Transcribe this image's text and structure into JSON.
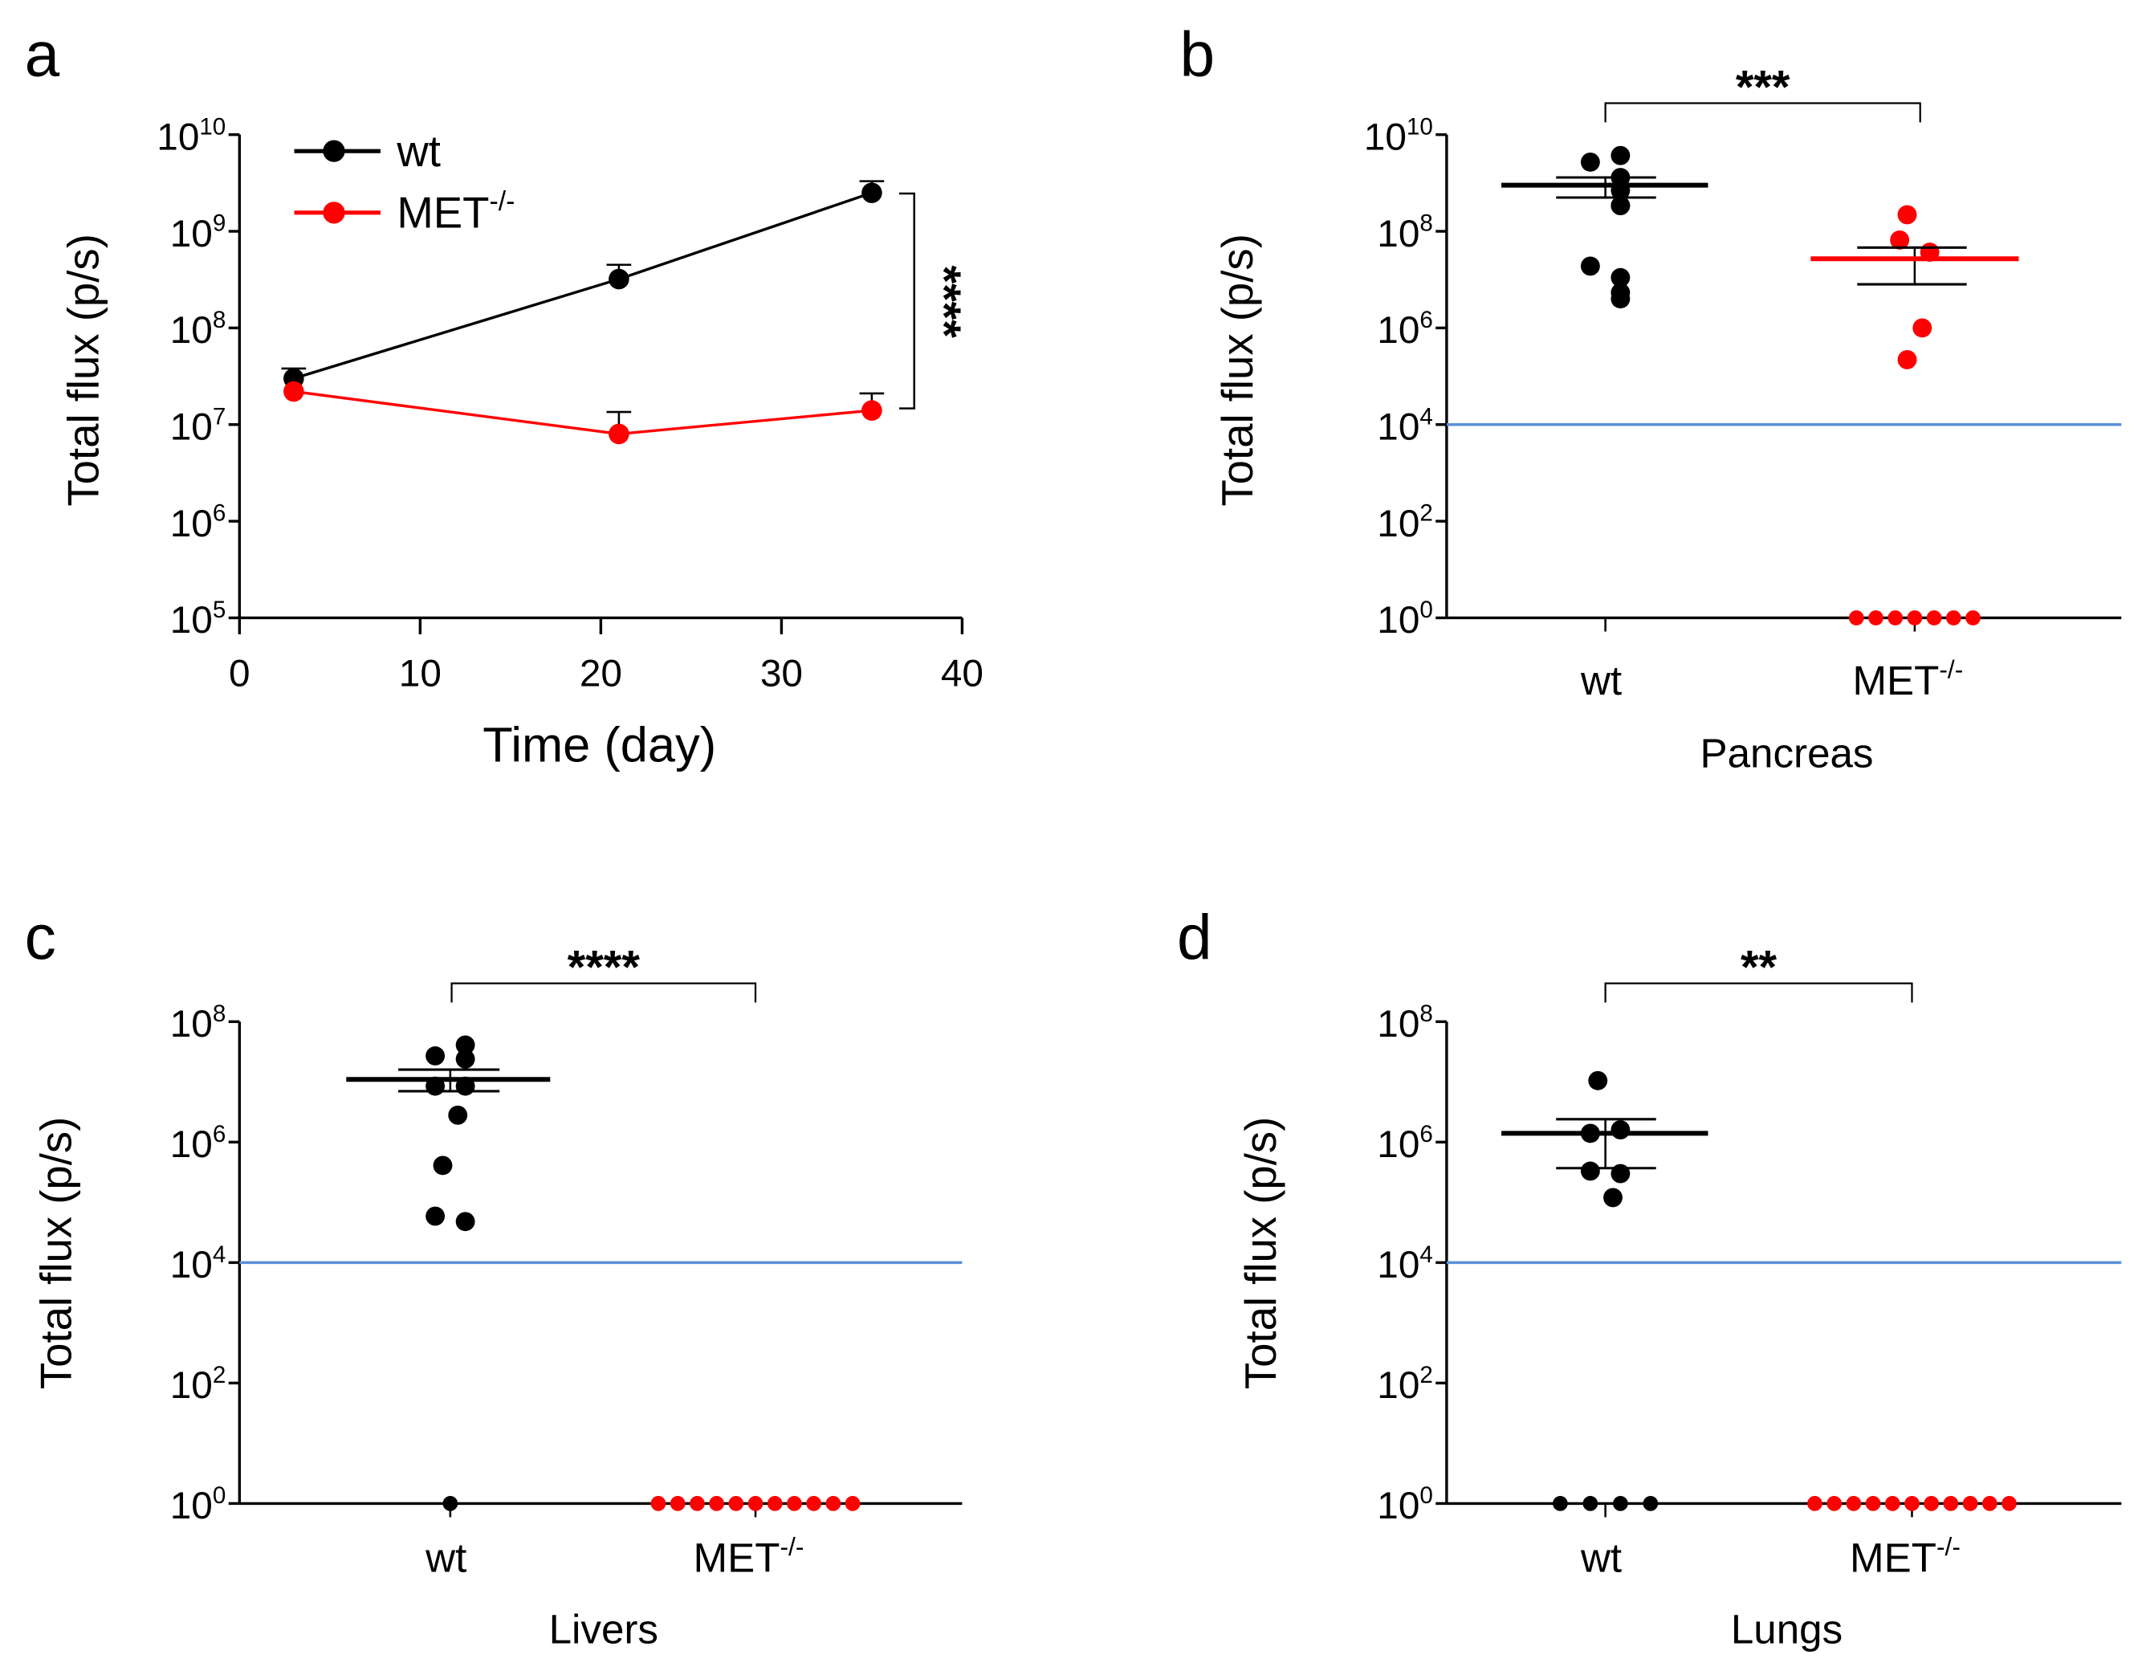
{
  "colors": {
    "wt": "#000000",
    "met": "#ff0000",
    "threshold": "#5b8fd6",
    "axis": "#000000"
  },
  "chart_data": [
    {
      "panel": "a",
      "type": "line",
      "xlabel": "Time (day)",
      "ylabel": "Total flux (p/s)",
      "xlim": [
        0,
        40
      ],
      "xticks": [
        "0",
        "10",
        "20",
        "30",
        "40"
      ],
      "xtick_values": [
        0,
        10,
        20,
        30,
        40
      ],
      "ylim": [
        100000,
        10000000000
      ],
      "yscale": "log",
      "ytick_base": "10",
      "ytick_exponents": [
        "5",
        "6",
        "7",
        "8",
        "9",
        "10"
      ],
      "legend": {
        "placement": "top-left",
        "entries": [
          {
            "label": "wt",
            "sup": ""
          },
          {
            "label": "MET",
            "sup": "-/-"
          }
        ]
      },
      "series": [
        {
          "name": "wt",
          "x": [
            3,
            21,
            35
          ],
          "y": [
            30000000,
            320000000,
            2500000000
          ],
          "err_upper": [
            38000000,
            450000000,
            3300000000
          ]
        },
        {
          "name": "MET-/-",
          "x": [
            3,
            21,
            35
          ],
          "y": [
            22000000,
            8000000,
            14000000
          ],
          "err_upper": [
            22000000,
            13500000,
            21000000
          ]
        }
      ],
      "significance": "****"
    },
    {
      "panel": "b",
      "type": "scatter",
      "title": "",
      "xlabel": "Pancreas",
      "ylabel": "Total flux (p/s)",
      "ylim": [
        1,
        10000000000
      ],
      "yscale": "log",
      "ytick_base": "10",
      "ytick_exponents": [
        "0",
        "2",
        "4",
        "6",
        "8",
        "10"
      ],
      "categories": [
        {
          "label": "wt",
          "sup": ""
        },
        {
          "label": "MET",
          "sup": "-/-"
        }
      ],
      "threshold": 10000,
      "series": [
        {
          "name": "wt",
          "values": [
            2700000000,
            3700000000,
            1300000000,
            700000000,
            340000000,
            340000000,
            19000000,
            11000000,
            5400000,
            4000000
          ],
          "mean": 900000000,
          "sem": [
            500000000,
            1300000000
          ]
        },
        {
          "name": "MET-/-",
          "values": [
            220000000,
            66000000,
            37000000,
            1000000,
            220000,
            1,
            1,
            1,
            1,
            1,
            1,
            1
          ],
          "mean": 27000000,
          "sem": [
            8000000,
            46000000
          ]
        }
      ],
      "significance": "***"
    },
    {
      "panel": "c",
      "type": "scatter",
      "xlabel": "Livers",
      "ylabel": "Total flux (p/s)",
      "ylim": [
        1,
        100000000
      ],
      "yscale": "log",
      "ytick_base": "10",
      "ytick_exponents": [
        "0",
        "2",
        "4",
        "6",
        "8"
      ],
      "categories": [
        {
          "label": "wt",
          "sup": ""
        },
        {
          "label": "MET",
          "sup": "-/-"
        }
      ],
      "threshold": 10000,
      "series": [
        {
          "name": "wt",
          "values": [
            27000000,
            41000000,
            24000000,
            8500000,
            8500000,
            2800000,
            410000,
            59000,
            48000,
            1
          ],
          "mean": 11000000,
          "sem": [
            7000000,
            16000000
          ]
        },
        {
          "name": "MET-/-",
          "values": [
            1,
            1,
            1,
            1,
            1,
            1,
            1,
            1,
            1,
            1,
            1
          ]
        }
      ],
      "significance": "****"
    },
    {
      "panel": "d",
      "type": "scatter",
      "xlabel": "Lungs",
      "ylabel": "Total flux (p/s)",
      "ylim": [
        1,
        100000000
      ],
      "yscale": "log",
      "ytick_base": "10",
      "ytick_exponents": [
        "0",
        "2",
        "4",
        "6",
        "8"
      ],
      "categories": [
        {
          "label": "wt",
          "sup": ""
        },
        {
          "label": "MET",
          "sup": "-/-"
        }
      ],
      "threshold": 10000,
      "series": [
        {
          "name": "wt",
          "values": [
            10500000,
            1400000,
            1600000,
            330000,
            300000,
            120000,
            1,
            1,
            1,
            1
          ],
          "mean": 1400000,
          "sem": [
            370000,
            2400000
          ]
        },
        {
          "name": "MET-/-",
          "values": [
            1,
            1,
            1,
            1,
            1,
            1,
            1,
            1,
            1,
            1,
            1
          ]
        }
      ],
      "significance": "**"
    }
  ]
}
